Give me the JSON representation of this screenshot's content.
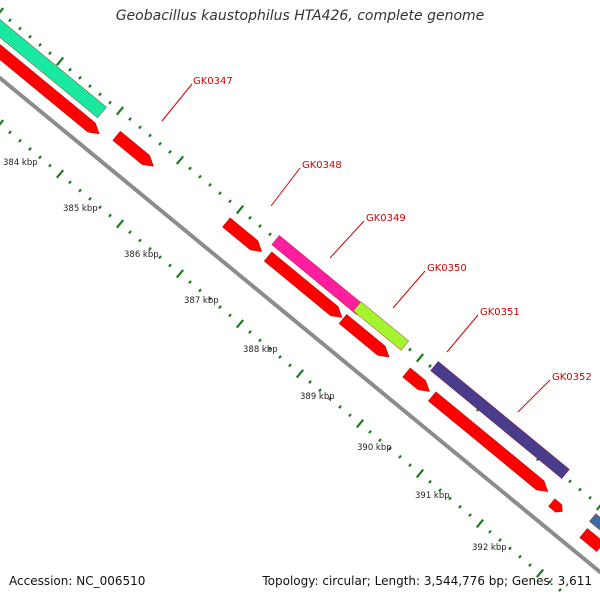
{
  "title": "Geobacillus kaustophilus HTA426, complete genome",
  "footer": {
    "accession": "Accession: NC_006510",
    "summary": "Topology: circular; Length: 3,544,776 bp; Genes: 3,611"
  },
  "colors": {
    "backbone": "#8c8c8c",
    "cds": "#ff0000",
    "ticks": "#1e7a1e",
    "label_text": "#d40000",
    "leader": "#d40000",
    "scale_text": "#222222"
  },
  "scale": {
    "unit": "kbp",
    "labels": [
      "384 kbp",
      "385 kbp",
      "386 kbp",
      "387 kbp",
      "388 kbp",
      "389 kbp",
      "390 kbp",
      "391 kbp",
      "392 kbp"
    ]
  },
  "genes": [
    {
      "label": "",
      "color": "#19e8a0"
    },
    {
      "label": "GK0347",
      "color": "#ff0000"
    },
    {
      "label": "GK0348",
      "color": "#ff0000"
    },
    {
      "label": "GK0349",
      "color": "#ff1ea0"
    },
    {
      "label": "GK0350",
      "color": "#a4f530"
    },
    {
      "label": "GK0351",
      "color": "#ff0000"
    },
    {
      "label": "GK0352",
      "color": "#4a3c8c"
    }
  ]
}
